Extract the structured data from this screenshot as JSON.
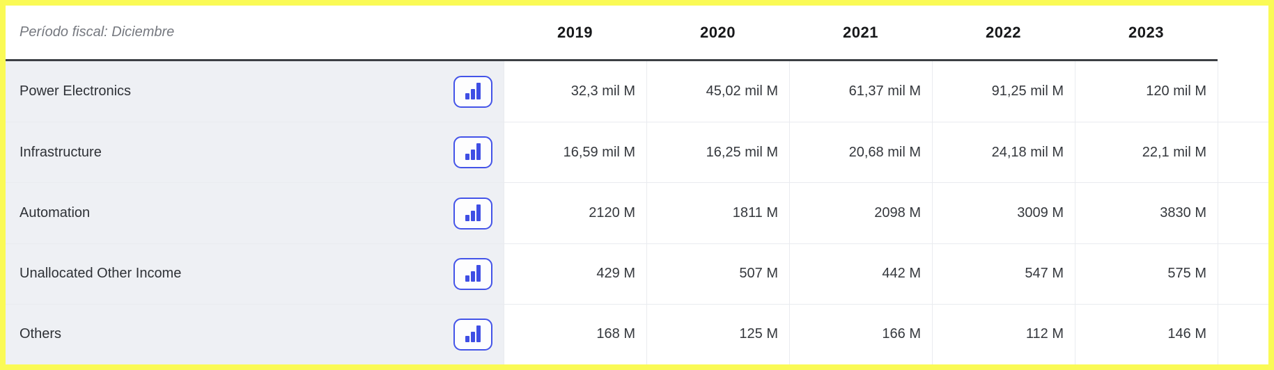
{
  "colors": {
    "highlight_frame": "#fafa55",
    "accent_blue": "#4353e8",
    "icon_bar_blue": "#3f4ee4",
    "label_cell_bg": "#eef0f4",
    "header_rule": "#3c3f44",
    "grid_line": "#e9ebef"
  },
  "icons": {
    "row_action": "bar-chart-icon"
  },
  "table": {
    "period_label": "Período fiscal: Diciembre",
    "years": [
      "2019",
      "2020",
      "2021",
      "2022",
      "2023"
    ],
    "rows": [
      {
        "label": "Power Electronics",
        "values": [
          "32,3 mil M",
          "45,02 mil M",
          "61,37 mil M",
          "91,25 mil M",
          "120 mil M"
        ]
      },
      {
        "label": "Infrastructure",
        "values": [
          "16,59 mil M",
          "16,25 mil M",
          "20,68 mil M",
          "24,18 mil M",
          "22,1 mil M"
        ]
      },
      {
        "label": "Automation",
        "values": [
          "2120 M",
          "1811 M",
          "2098 M",
          "3009 M",
          "3830 M"
        ]
      },
      {
        "label": "Unallocated Other Income",
        "values": [
          "429 M",
          "507 M",
          "442 M",
          "547 M",
          "575 M"
        ]
      },
      {
        "label": "Others",
        "values": [
          "168 M",
          "125 M",
          "166 M",
          "112 M",
          "146 M"
        ]
      }
    ]
  }
}
